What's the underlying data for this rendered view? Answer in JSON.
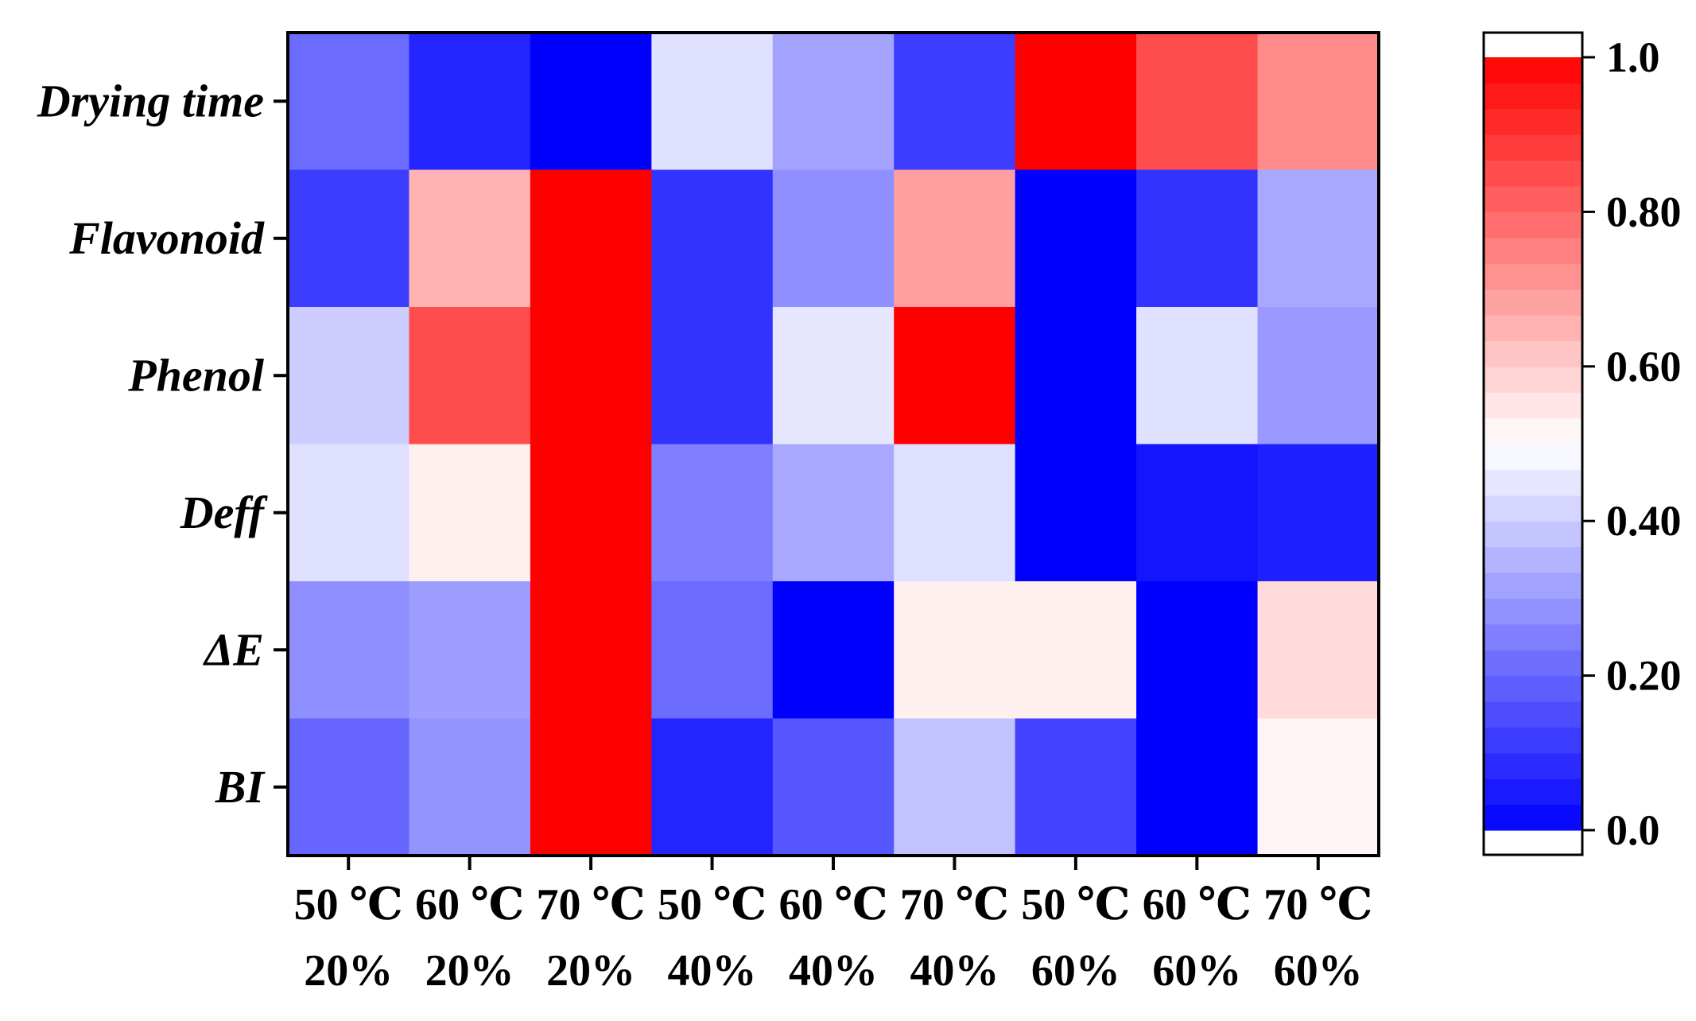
{
  "chart_data": {
    "type": "heatmap",
    "rows": [
      "Drying time",
      "Flavonoid",
      "Phenol",
      "Deff",
      "ΔE",
      "BI"
    ],
    "columns": [
      {
        "line1": "50 ℃",
        "line2": "20%"
      },
      {
        "line1": "60 ℃",
        "line2": "20%"
      },
      {
        "line1": "70 ℃",
        "line2": "20%"
      },
      {
        "line1": "50 ℃",
        "line2": "40%"
      },
      {
        "line1": "60 ℃",
        "line2": "40%"
      },
      {
        "line1": "70 ℃",
        "line2": "40%"
      },
      {
        "line1": "50 ℃",
        "line2": "60%"
      },
      {
        "line1": "60 ℃",
        "line2": "60%"
      },
      {
        "line1": "70 ℃",
        "line2": "60%"
      }
    ],
    "values": [
      [
        0.21,
        0.07,
        0.0,
        0.44,
        0.32,
        0.12,
        1.0,
        0.85,
        0.73
      ],
      [
        0.12,
        0.65,
        1.0,
        0.1,
        0.28,
        0.69,
        0.0,
        0.1,
        0.33
      ],
      [
        0.4,
        0.85,
        1.0,
        0.1,
        0.45,
        1.0,
        0.0,
        0.44,
        0.3
      ],
      [
        0.44,
        0.53,
        1.0,
        0.25,
        0.33,
        0.44,
        0.0,
        0.04,
        0.06
      ],
      [
        0.28,
        0.31,
        1.0,
        0.21,
        0.0,
        0.53,
        0.53,
        0.0,
        0.57
      ],
      [
        0.2,
        0.29,
        1.0,
        0.07,
        0.17,
        0.38,
        0.13,
        0.0,
        0.52
      ]
    ],
    "colorbar": {
      "range": [
        0.0,
        1.0
      ],
      "ticks": [
        "0.0",
        "0.20",
        "0.40",
        "0.60",
        "0.80",
        "1.0"
      ],
      "tick_values": [
        0.0,
        0.2,
        0.4,
        0.6,
        0.8,
        1.0
      ],
      "levels": 30,
      "colors": {
        "low": "#0000ff",
        "mid": "#ffffff",
        "high": "#ff0000"
      }
    }
  }
}
